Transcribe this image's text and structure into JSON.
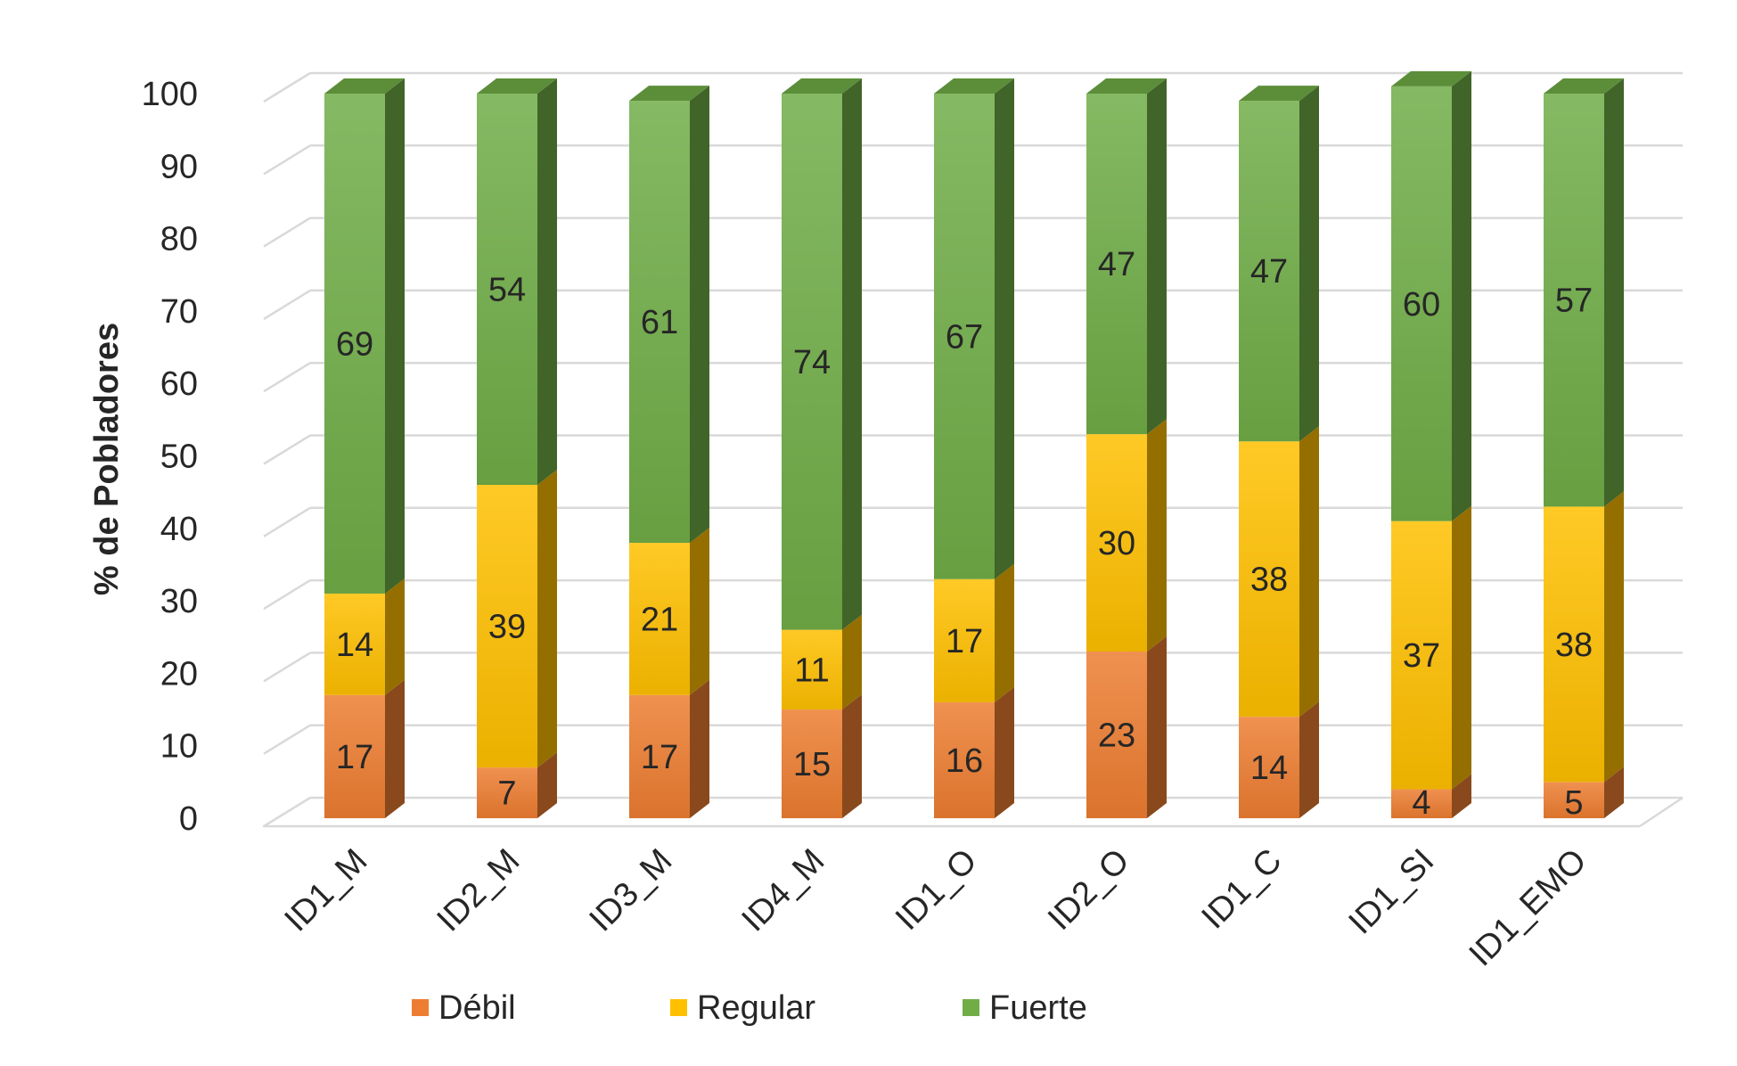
{
  "chart_data": {
    "type": "bar",
    "stacked": true,
    "style": "3d-column",
    "title": "",
    "xlabel": "",
    "ylabel": "% de Pobladores",
    "ylim": [
      0,
      100
    ],
    "yticks": [
      0,
      10,
      20,
      30,
      40,
      50,
      60,
      70,
      80,
      90,
      100
    ],
    "grid": true,
    "legend_position": "bottom",
    "categories": [
      "ID1_M",
      "ID2_M",
      "ID3_M",
      "ID4_M",
      "ID1_O",
      "ID2_O",
      "ID1_C",
      "ID1_SI",
      "ID1_EMO"
    ],
    "series": [
      {
        "name": "Débil",
        "color": "#ed7d31",
        "values": [
          17,
          7,
          17,
          15,
          16,
          23,
          14,
          4,
          5
        ]
      },
      {
        "name": "Regular",
        "color": "#ffc000",
        "values": [
          14,
          39,
          21,
          11,
          17,
          30,
          38,
          37,
          38
        ]
      },
      {
        "name": "Fuerte",
        "color": "#70ad47",
        "values": [
          69,
          54,
          61,
          74,
          67,
          47,
          47,
          60,
          57
        ]
      }
    ]
  }
}
